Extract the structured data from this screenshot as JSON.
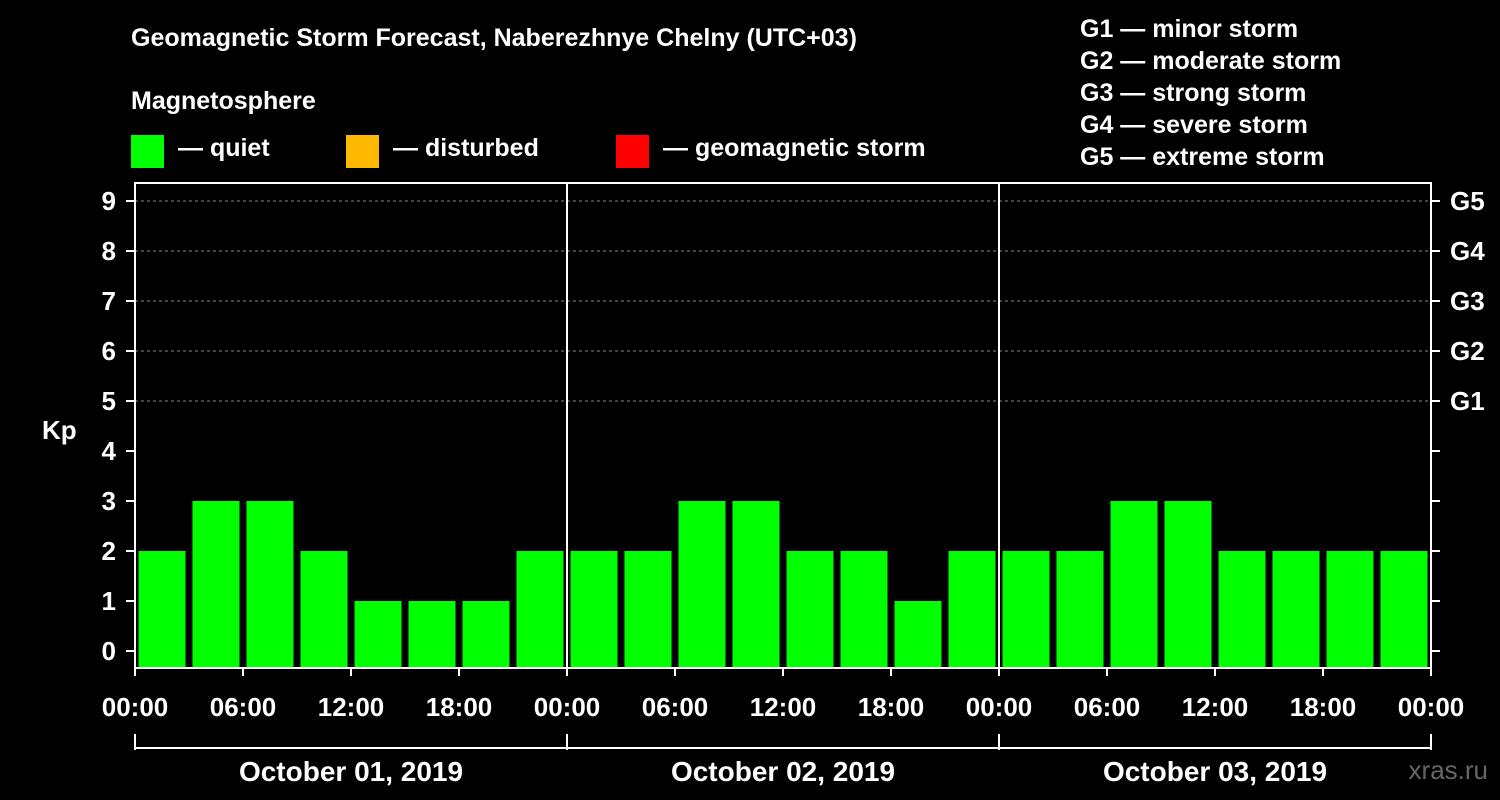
{
  "title": "Geomagnetic Storm Forecast, Naberezhnye Chelny (UTC+03)",
  "legend": {
    "heading": "Magnetosphere",
    "items": [
      {
        "label": "— quiet",
        "color": "#00ff00"
      },
      {
        "label": "— disturbed",
        "color": "#ffb900"
      },
      {
        "label": "— geomagnetic storm",
        "color": "#ff0000"
      }
    ]
  },
  "storm_levels": [
    "G1 — minor storm",
    "G2 — moderate storm",
    "G3 — strong storm",
    "G4 — severe storm",
    "G5 — extreme storm"
  ],
  "watermark": "xras.ru",
  "colors": {
    "quiet": "#00ff00",
    "grid": "#888888",
    "axis": "#ffffff",
    "background": "#000000"
  },
  "chart_data": {
    "type": "bar",
    "title": "Geomagnetic Storm Forecast, Naberezhnye Chelny (UTC+03)",
    "ylabel": "Kp",
    "ylim": [
      0,
      9
    ],
    "y_ticks": [
      "0",
      "1",
      "2",
      "3",
      "4",
      "5",
      "6",
      "7",
      "8",
      "9"
    ],
    "right_ticks": [
      {
        "kp": 5,
        "label": "G1"
      },
      {
        "kp": 6,
        "label": "G2"
      },
      {
        "kp": 7,
        "label": "G3"
      },
      {
        "kp": 8,
        "label": "G4"
      },
      {
        "kp": 9,
        "label": "G5"
      }
    ],
    "x_tick_labels": [
      "00:00",
      "06:00",
      "12:00",
      "18:00",
      "00:00",
      "06:00",
      "12:00",
      "18:00",
      "00:00",
      "06:00",
      "12:00",
      "18:00",
      "00:00"
    ],
    "days": [
      "October 01, 2019",
      "October 02, 2019",
      "October 03, 2019"
    ],
    "interval_hours": 3,
    "values": [
      2,
      3,
      3,
      2,
      1,
      1,
      1,
      2,
      2,
      2,
      3,
      3,
      2,
      2,
      1,
      2,
      2,
      2,
      3,
      3,
      2,
      2,
      2,
      2
    ],
    "grid": true
  }
}
